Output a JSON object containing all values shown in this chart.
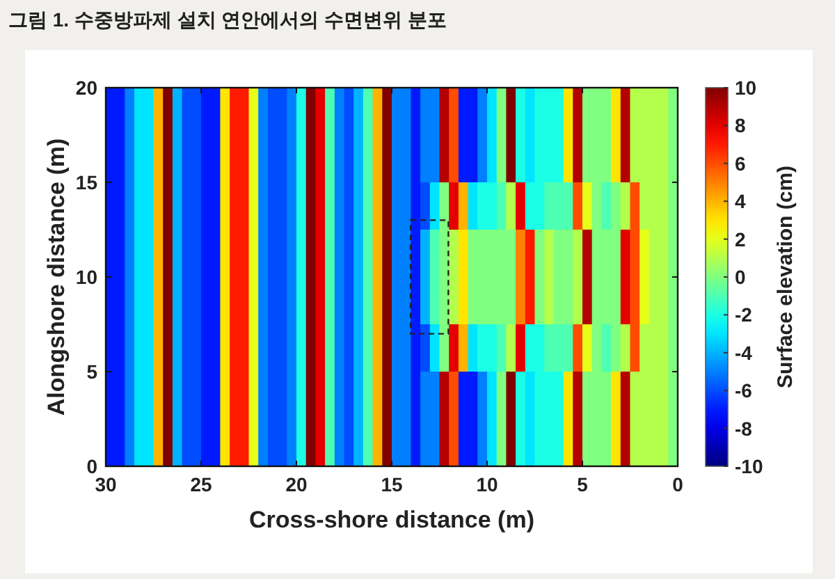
{
  "chart_data": {
    "type": "heatmap",
    "title": "그림 1. 수중방파제 설치 연안에서의 수면변위 분포",
    "xlabel": "Cross-shore distance (m)",
    "ylabel": "Alongshore distance (m)",
    "clabel": "Surface elevation (cm)",
    "x": [
      29.75,
      29.25,
      28.75,
      28.25,
      27.75,
      27.25,
      26.75,
      26.25,
      25.75,
      25.25,
      24.75,
      24.25,
      23.75,
      23.25,
      22.75,
      22.25,
      21.75,
      21.25,
      20.75,
      20.25,
      19.75,
      19.25,
      18.75,
      18.25,
      17.75,
      17.25,
      16.75,
      16.25,
      15.75,
      15.25,
      14.75,
      14.25,
      13.75,
      13.25,
      12.75,
      12.25,
      11.75,
      11.25,
      10.75,
      10.25,
      9.75,
      9.25,
      8.75,
      8.25,
      7.75,
      7.25,
      6.75,
      6.25,
      5.75,
      5.25,
      4.75,
      4.25,
      3.75,
      3.25,
      2.75,
      2.25,
      1.75,
      1.25,
      0.75,
      0.25
    ],
    "y": [
      18.75,
      16.25,
      13.75,
      11.25,
      8.75,
      6.25,
      3.75,
      1.25
    ],
    "cells": [
      [
        -7,
        -7,
        -5,
        -3,
        -3,
        4,
        10,
        -4,
        -6,
        -6,
        -7,
        -7,
        3,
        7,
        7,
        2,
        -5,
        -6,
        -6,
        -5,
        -2,
        10,
        8,
        -1,
        -5,
        -6,
        -4,
        -1,
        4,
        10,
        -5,
        -5,
        -7,
        -5,
        -5,
        9,
        6,
        -7,
        -7,
        -5,
        -3,
        0,
        10,
        -2,
        -3,
        -2,
        -2,
        -2,
        3,
        9,
        0,
        0,
        0,
        3,
        9,
        1,
        1,
        1,
        1,
        0
      ],
      [
        -7,
        -7,
        -5,
        -3,
        -3,
        4,
        10,
        -4,
        -6,
        -6,
        -7,
        -7,
        3,
        7,
        7,
        2,
        -5,
        -6,
        -6,
        -5,
        -2,
        10,
        8,
        -1,
        -5,
        -6,
        -4,
        -1,
        4,
        10,
        -5,
        -5,
        -7,
        -5,
        -5,
        9,
        6,
        -7,
        -7,
        -5,
        -3,
        0,
        10,
        -2,
        -3,
        -2,
        -2,
        -2,
        3,
        9,
        0,
        0,
        0,
        3,
        9,
        1,
        1,
        1,
        1,
        0
      ],
      [
        -7,
        -7,
        -5,
        -3,
        -3,
        4,
        10,
        -4,
        -6,
        -6,
        -7,
        -7,
        3,
        7,
        7,
        2,
        -5,
        -6,
        -6,
        -5,
        -2,
        10,
        8,
        -1,
        -5,
        -6,
        -4,
        -1,
        4,
        10,
        -5,
        -5,
        -7,
        -6,
        -3,
        0,
        8,
        4,
        -3,
        -2,
        -2,
        -1,
        1,
        8,
        -2,
        -2,
        -1,
        -1,
        -1,
        6,
        2,
        0,
        -1,
        0,
        1,
        6,
        1,
        1,
        1,
        0
      ],
      [
        -7,
        -7,
        -5,
        -3,
        -3,
        4,
        10,
        -4,
        -6,
        -6,
        -7,
        -7,
        3,
        7,
        7,
        2,
        -5,
        -6,
        -6,
        -5,
        -2,
        10,
        8,
        -1,
        -5,
        -6,
        -4,
        -1,
        4,
        10,
        -5,
        -5,
        -7,
        -4,
        -1,
        0,
        1,
        3,
        0,
        0,
        0,
        0,
        0,
        5,
        7,
        0,
        1,
        0,
        0,
        1,
        9,
        0,
        0,
        0,
        8,
        6,
        2,
        1,
        1,
        0
      ],
      [
        -7,
        -7,
        -5,
        -3,
        -3,
        4,
        10,
        -4,
        -6,
        -6,
        -7,
        -7,
        3,
        7,
        7,
        2,
        -5,
        -6,
        -6,
        -5,
        -2,
        10,
        8,
        -1,
        -5,
        -6,
        -4,
        -1,
        4,
        10,
        -5,
        -5,
        -7,
        -4,
        -1,
        0,
        1,
        3,
        0,
        0,
        0,
        0,
        0,
        5,
        7,
        0,
        1,
        0,
        0,
        1,
        9,
        0,
        0,
        0,
        8,
        6,
        2,
        1,
        1,
        0
      ],
      [
        -7,
        -7,
        -5,
        -3,
        -3,
        4,
        10,
        -4,
        -6,
        -6,
        -7,
        -7,
        3,
        7,
        7,
        2,
        -5,
        -6,
        -6,
        -5,
        -2,
        10,
        8,
        -1,
        -5,
        -6,
        -4,
        -1,
        4,
        10,
        -5,
        -5,
        -7,
        -6,
        -3,
        0,
        8,
        4,
        -3,
        -2,
        -2,
        -1,
        1,
        8,
        -2,
        -2,
        -1,
        -1,
        -1,
        6,
        2,
        0,
        -1,
        0,
        1,
        6,
        1,
        1,
        1,
        0
      ],
      [
        -7,
        -7,
        -5,
        -3,
        -3,
        4,
        10,
        -4,
        -6,
        -6,
        -7,
        -7,
        3,
        7,
        7,
        2,
        -5,
        -6,
        -6,
        -5,
        -2,
        10,
        8,
        -1,
        -5,
        -6,
        -4,
        -1,
        4,
        10,
        -5,
        -5,
        -7,
        -5,
        -5,
        9,
        6,
        -7,
        -7,
        -5,
        -3,
        0,
        10,
        -2,
        -3,
        -2,
        -2,
        -2,
        3,
        9,
        0,
        0,
        0,
        3,
        9,
        1,
        1,
        1,
        1,
        0
      ],
      [
        -7,
        -7,
        -5,
        -3,
        -3,
        4,
        10,
        -4,
        -6,
        -6,
        -7,
        -7,
        3,
        7,
        7,
        2,
        -5,
        -6,
        -6,
        -5,
        -2,
        10,
        8,
        -1,
        -5,
        -6,
        -4,
        -1,
        4,
        10,
        -5,
        -5,
        -7,
        -5,
        -5,
        9,
        6,
        -7,
        -7,
        -5,
        -3,
        0,
        10,
        -2,
        -3,
        -2,
        -2,
        -2,
        3,
        9,
        0,
        0,
        0,
        3,
        9,
        1,
        1,
        1,
        1,
        0
      ]
    ],
    "xlim": [
      30,
      0
    ],
    "ylim": [
      0,
      20
    ],
    "xticks": [
      30,
      25,
      20,
      15,
      10,
      5,
      0
    ],
    "yticks": [
      0,
      5,
      10,
      15,
      20
    ],
    "clim": [
      -10,
      10
    ],
    "cticks": [
      -10,
      -8,
      -6,
      -4,
      -2,
      0,
      2,
      4,
      6,
      8,
      10
    ]
  }
}
